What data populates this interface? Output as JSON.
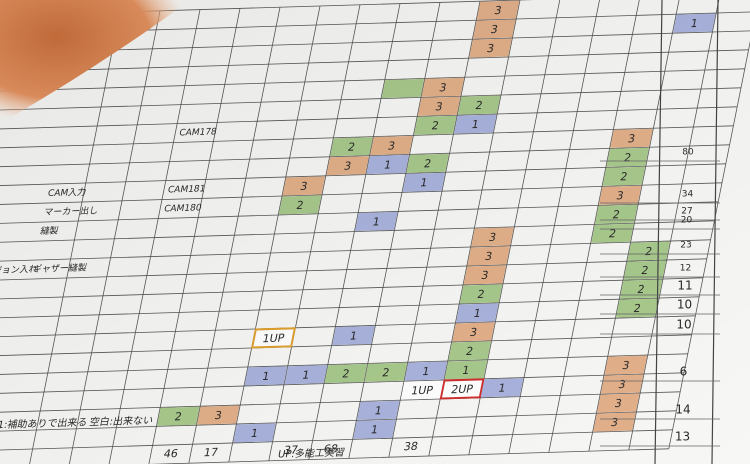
{
  "left_labels": [
    "CAM入力",
    "マーカー出し",
    "縫製",
    "ジョン入れ",
    "ギャザー縫製",
    "CAM178",
    "CAM181",
    "CAM180"
  ],
  "cells": [
    {
      "text": "3",
      "color": "#e2b08a"
    },
    {
      "text": "3",
      "color": "#e2b08a"
    },
    {
      "text": "3",
      "color": "#e2b08a"
    },
    {
      "text": "1",
      "color": "#a9b3dd"
    },
    {
      "color": "#a8c98c"
    },
    {
      "text": "3",
      "color": "#e2b08a"
    },
    {
      "text": "3",
      "color": "#e2b08a"
    },
    {
      "text": "2",
      "color": "#a8c98c"
    },
    {
      "text": "1",
      "color": "#a9b3dd"
    },
    {
      "text": "2",
      "color": "#a8c98c"
    },
    {
      "text": "3",
      "color": "#e2b08a"
    },
    {
      "text": "2",
      "color": "#a8c98c"
    },
    {
      "text": "1",
      "color": "#a9b3dd"
    },
    {
      "text": "2",
      "color": "#a8c98c"
    },
    {
      "text": "3",
      "color": "#e2b08a"
    },
    {
      "text": "3",
      "color": "#e2b08a"
    },
    {
      "text": "2",
      "color": "#a8c98c"
    },
    {
      "text": "1",
      "color": "#a9b3dd"
    },
    {
      "text": "3",
      "color": "#e2b08a"
    },
    {
      "text": "2",
      "color": "#a8c98c"
    },
    {
      "text": "2",
      "color": "#a8c98c"
    },
    {
      "text": "3",
      "color": "#e2b08a"
    },
    {
      "text": "2",
      "color": "#a8c98c"
    },
    {
      "text": "2",
      "color": "#a8c98c"
    },
    {
      "text": "1",
      "color": "#a9b3dd"
    },
    {
      "text": "3",
      "color": "#e2b08a"
    },
    {
      "text": "3",
      "color": "#e2b08a"
    },
    {
      "text": "3",
      "color": "#e2b08a"
    },
    {
      "text": "2",
      "color": "#a8c98c"
    },
    {
      "text": "1",
      "color": "#a9b3dd"
    },
    {
      "text": "3",
      "color": "#e2b08a"
    },
    {
      "text": "2",
      "color": "#a8c98c"
    },
    {
      "text": "1",
      "color": "#a8c98c"
    },
    {
      "text": "2",
      "color": "#a8c98c"
    },
    {
      "text": "2",
      "color": "#a8c98c"
    },
    {
      "text": "2",
      "color": "#a8c98c"
    },
    {
      "text": "2",
      "color": "#a8c98c"
    },
    {
      "text": "1UP",
      "color": "#ffffff",
      "border": "#e0a030"
    },
    {
      "text": "1",
      "color": "#a9b3dd"
    },
    {
      "text": "1",
      "color": "#a9b3dd"
    },
    {
      "text": "1",
      "color": "#a9b3dd"
    },
    {
      "text": "2",
      "color": "#a8c98c"
    },
    {
      "text": "2",
      "color": "#a8c98c"
    },
    {
      "text": "1",
      "color": "#a9b3dd"
    },
    {
      "text": "2UP",
      "color": "#ffffff",
      "border": "#d03030"
    },
    {
      "text": "1",
      "color": "#a9b3dd"
    },
    {
      "text": "1UP",
      "color": "#ffffff"
    },
    {
      "text": "2",
      "color": "#a8c98c"
    },
    {
      "text": "3",
      "color": "#e2b08a"
    },
    {
      "text": "1",
      "color": "#a9b3dd"
    },
    {
      "text": "1",
      "color": "#a9b3dd"
    },
    {
      "text": "1",
      "color": "#a9b3dd"
    },
    {
      "text": "3",
      "color": "#e2b08a"
    },
    {
      "text": "3",
      "color": "#e2b08a"
    },
    {
      "text": "3",
      "color": "#e2b08a"
    },
    {
      "text": "3",
      "color": "#e2b08a"
    }
  ],
  "column_totals": [
    46,
    17,
    37,
    68,
    38
  ],
  "legend": [
    "1:補助ありで出来る",
    "空白:出来ない",
    "UP:多能工実習"
  ],
  "row_totals": [
    80,
    34,
    27,
    20,
    23,
    12,
    11,
    10,
    10,
    6,
    14,
    13
  ]
}
